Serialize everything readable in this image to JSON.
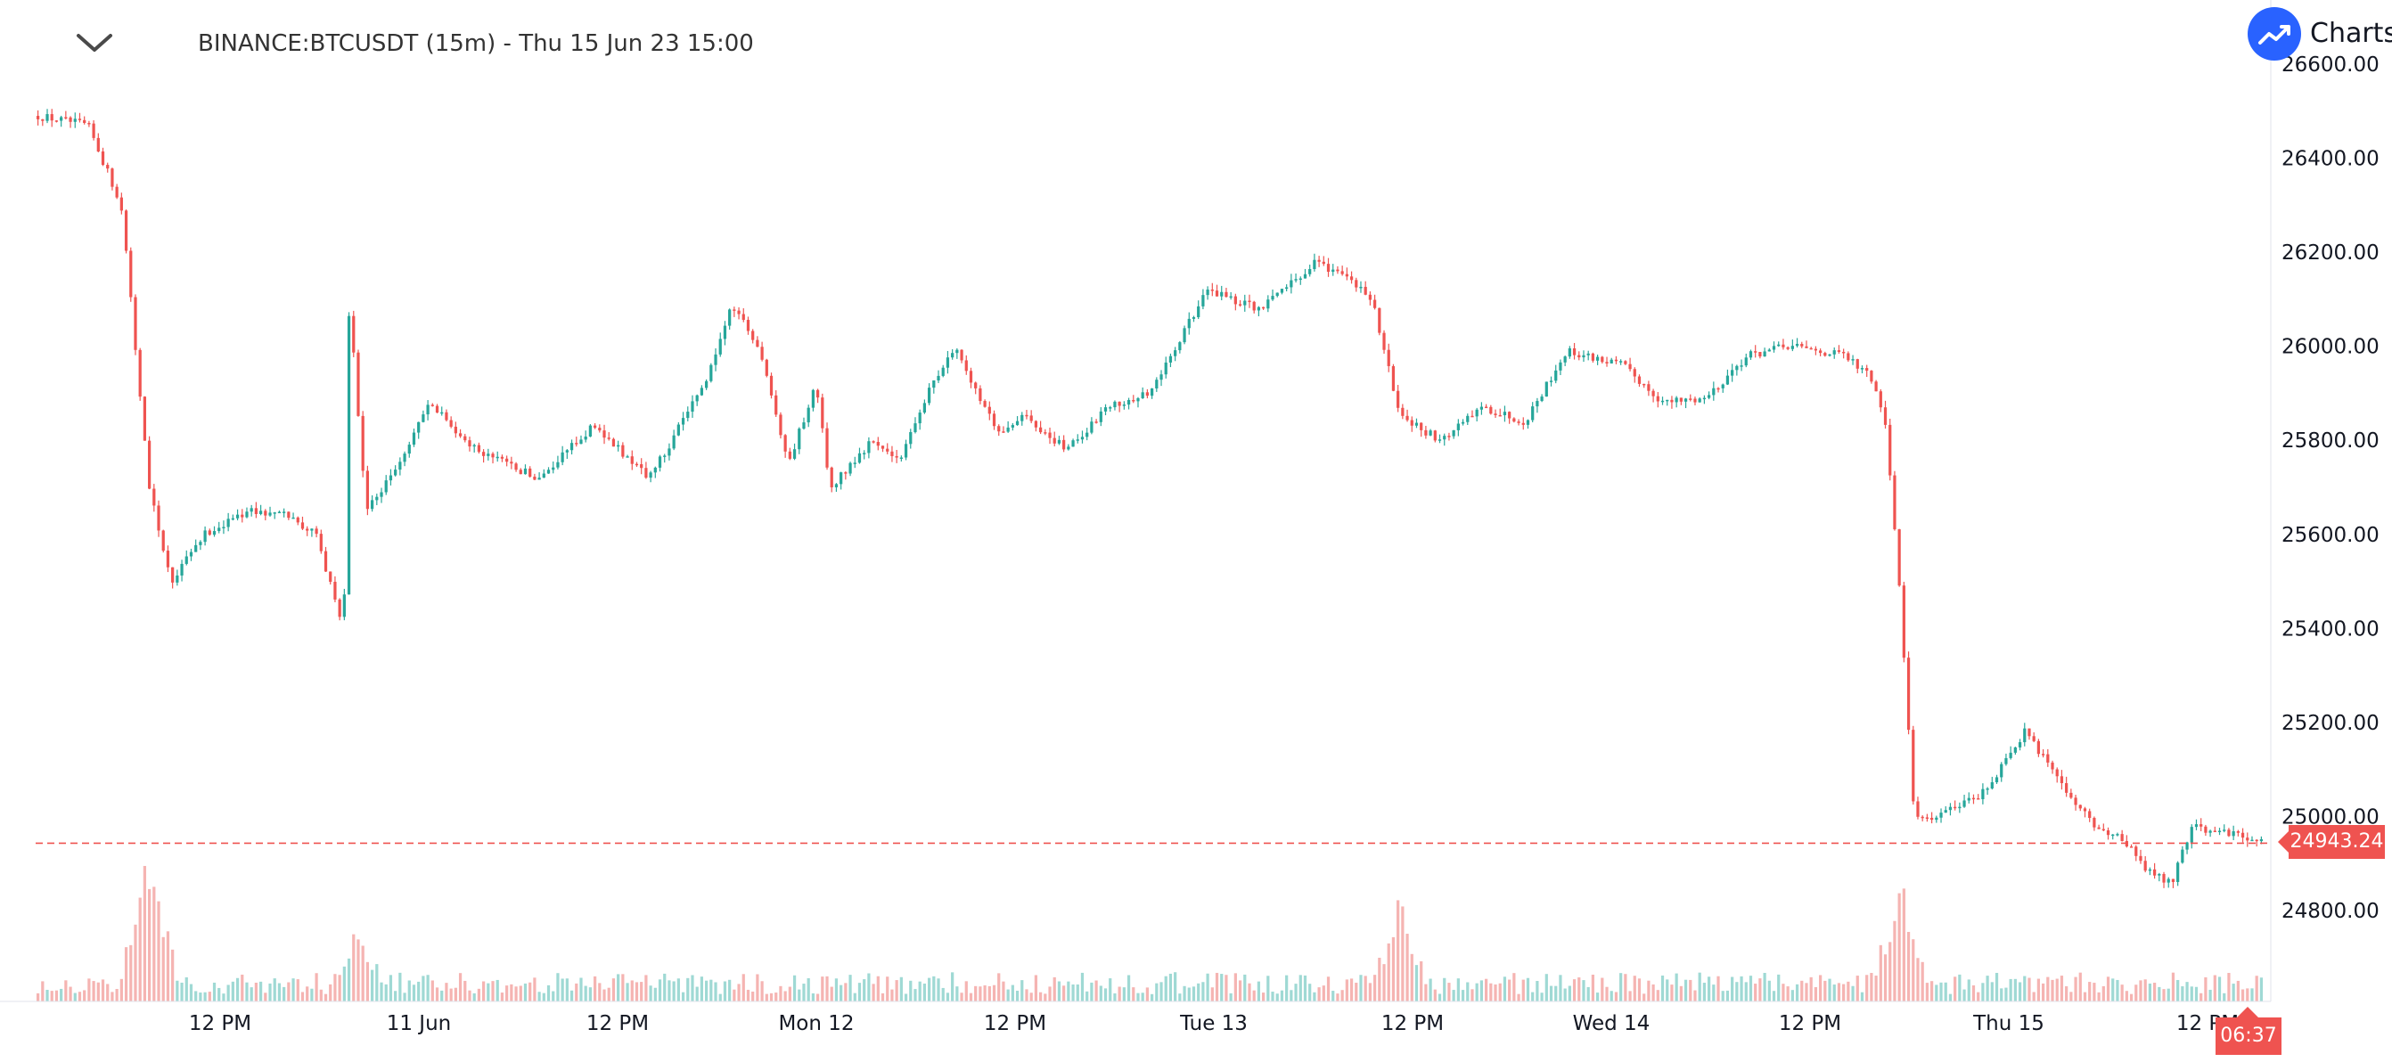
{
  "header": {
    "symbol_title": "BINANCE:BTCUSDT (15m) - Thu 15 Jun 23 15:00",
    "collapse_icon": "chevron-down-icon",
    "logo_text": "Charts p",
    "logo_icon": "trend-arrow-icon"
  },
  "colors": {
    "up": "#26a69a",
    "down": "#ef5350",
    "volume_up": "#9fd9d4",
    "volume_down": "#f5b4b2",
    "axis_text": "#131722",
    "accent": "#2962ff"
  },
  "price_tag": {
    "label": "24943.24",
    "value": 24943.24
  },
  "countdown": {
    "label": "06:37"
  },
  "chart_data": {
    "type": "candlestick",
    "title": "BINANCE:BTCUSDT (15m) - Thu 15 Jun 23 15:00",
    "ylim": [
      24650,
      26680
    ],
    "y_ticks": [
      24800,
      25000,
      25200,
      25400,
      25600,
      25800,
      26000,
      26200,
      26400,
      26600
    ],
    "y_tick_labels": [
      "24800.00",
      "25000.00",
      "25200.00",
      "25400.00",
      "25600.00",
      "25800.00",
      "26000.00",
      "26200.00",
      "26400.00",
      "26600.00"
    ],
    "x_labels": [
      "12 PM",
      "11 Jun",
      "12 PM",
      "Mon 12",
      "12 PM",
      "Tue 13",
      "12 PM",
      "Wed 14",
      "12 PM",
      "Thu 15",
      "12 PM"
    ],
    "candle_count": 480,
    "current_price": 24943.24,
    "price_path": [
      [
        0,
        26490
      ],
      [
        18,
        26470
      ],
      [
        30,
        26300
      ],
      [
        40,
        25700
      ],
      [
        48,
        25500
      ],
      [
        60,
        25600
      ],
      [
        75,
        25650
      ],
      [
        90,
        25640
      ],
      [
        100,
        25600
      ],
      [
        110,
        25400
      ],
      [
        112,
        26100
      ],
      [
        118,
        25650
      ],
      [
        130,
        25750
      ],
      [
        140,
        25880
      ],
      [
        160,
        25770
      ],
      [
        180,
        25720
      ],
      [
        200,
        25830
      ],
      [
        220,
        25720
      ],
      [
        240,
        25920
      ],
      [
        250,
        26090
      ],
      [
        260,
        25990
      ],
      [
        270,
        25750
      ],
      [
        280,
        25920
      ],
      [
        285,
        25700
      ],
      [
        300,
        25800
      ],
      [
        310,
        25760
      ],
      [
        320,
        25900
      ],
      [
        330,
        26000
      ],
      [
        345,
        25820
      ],
      [
        355,
        25850
      ],
      [
        370,
        25780
      ],
      [
        385,
        25870
      ],
      [
        400,
        25900
      ],
      [
        410,
        26000
      ],
      [
        420,
        26120
      ],
      [
        440,
        26080
      ],
      [
        460,
        26180
      ],
      [
        470,
        26150
      ],
      [
        480,
        26100
      ],
      [
        490,
        25850
      ],
      [
        505,
        25800
      ],
      [
        520,
        25870
      ],
      [
        535,
        25840
      ],
      [
        550,
        25990
      ],
      [
        570,
        25960
      ],
      [
        585,
        25880
      ],
      [
        600,
        25890
      ],
      [
        615,
        25980
      ],
      [
        630,
        26000
      ],
      [
        650,
        25980
      ],
      [
        660,
        25930
      ],
      [
        665,
        25830
      ],
      [
        670,
        25480
      ],
      [
        675,
        25000
      ],
      [
        683,
        25000
      ],
      [
        700,
        25050
      ],
      [
        715,
        25180
      ],
      [
        730,
        25050
      ],
      [
        740,
        24980
      ],
      [
        750,
        24950
      ],
      [
        760,
        24880
      ],
      [
        768,
        24860
      ],
      [
        775,
        24980
      ],
      [
        800,
        24950
      ]
    ],
    "volume_spikes": [
      {
        "t": 40,
        "relative_volume": 1.0
      },
      {
        "t": 115,
        "relative_volume": 0.5
      },
      {
        "t": 490,
        "relative_volume": 0.62
      },
      {
        "t": 670,
        "relative_volume": 0.75
      }
    ]
  }
}
